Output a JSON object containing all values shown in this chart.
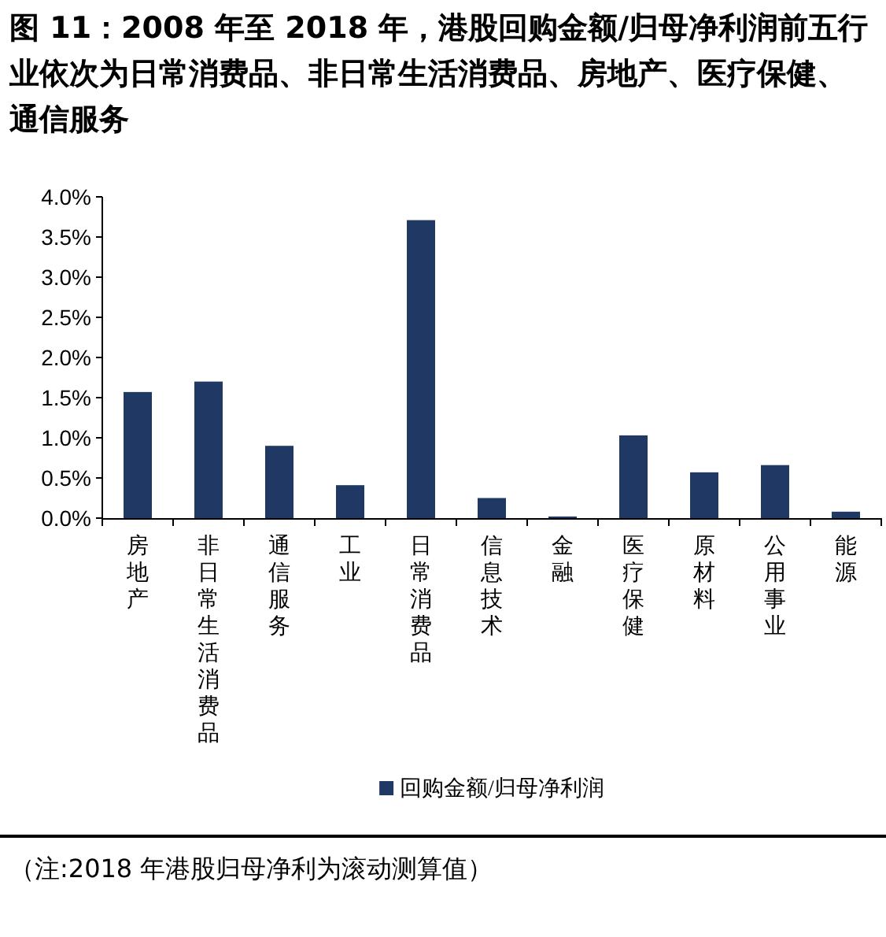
{
  "chart_data": {
    "type": "bar",
    "title": "图 11：2008 年至 2018 年，港股回购金额/归母净利润前五行业依次为日常消费品、非日常生活消费品、房地产、医疗保健、通信服务",
    "categories": [
      "房地产",
      "非日常生活消费品",
      "通信服务",
      "工业",
      "日常消费品",
      "信息技术",
      "金融",
      "医疗保健",
      "原材料",
      "公用事业",
      "能源"
    ],
    "series": [
      {
        "name": "回购金额/归母净利润",
        "color": "#1f3864",
        "values": [
          1.57,
          1.7,
          0.9,
          0.41,
          3.71,
          0.25,
          0.02,
          1.03,
          0.57,
          0.66,
          0.08
        ]
      }
    ],
    "ylim": [
      0,
      4
    ],
    "yticks": [
      {
        "value": 0,
        "label": "0.0%"
      },
      {
        "value": 0.5,
        "label": "0.5%"
      },
      {
        "value": 1,
        "label": "1.0%"
      },
      {
        "value": 1.5,
        "label": "1.5%"
      },
      {
        "value": 2,
        "label": "2.0%"
      },
      {
        "value": 2.5,
        "label": "2.5%"
      },
      {
        "value": 3,
        "label": "3.0%"
      },
      {
        "value": 3.5,
        "label": "3.5%"
      },
      {
        "value": 4,
        "label": "4.0%"
      }
    ],
    "grid": false,
    "legend": "bottom",
    "annotations": [
      "（注:2018 年港股归母净利为滚动测算值）"
    ]
  }
}
